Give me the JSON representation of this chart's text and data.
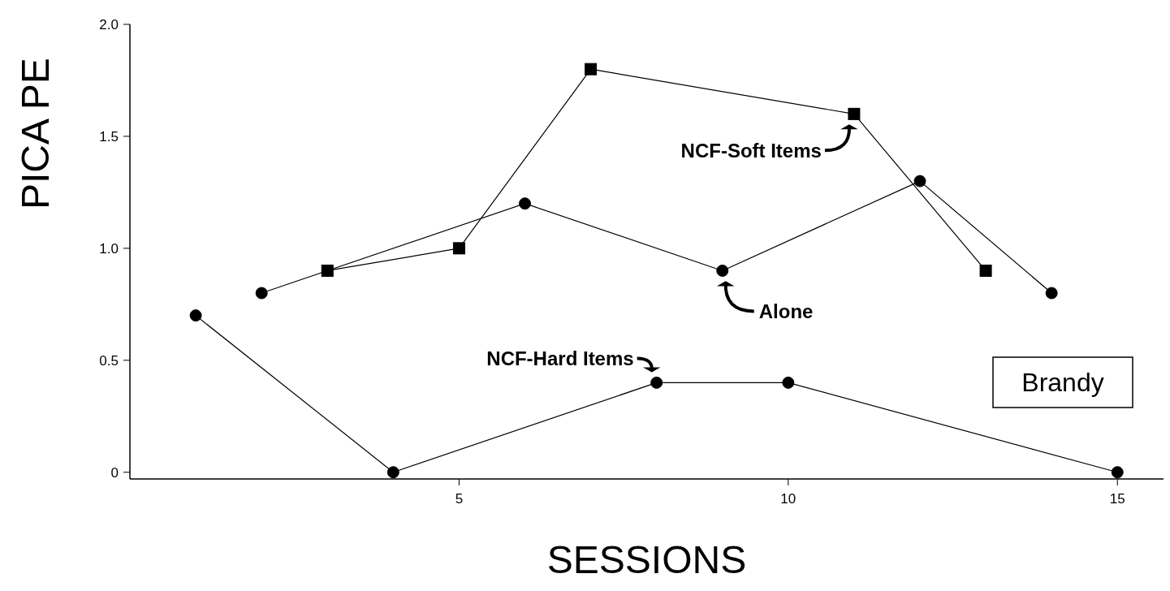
{
  "chart_data": {
    "type": "line",
    "xlabel": "SESSIONS",
    "ylabel": "PICA PE",
    "x": [
      1,
      2,
      3,
      4,
      5,
      6,
      7,
      8,
      9,
      10,
      11,
      12,
      13,
      14,
      15
    ],
    "xlim": [
      0,
      15.7
    ],
    "xticks": [
      5,
      10,
      15
    ],
    "ylim": [
      -0.03,
      2.0
    ],
    "yticks": [
      0,
      0.5,
      {
        "value": 1,
        "label": "1.0"
      },
      1.5,
      {
        "value": 2,
        "label": "2.0"
      }
    ],
    "grid": false,
    "line_style": "solid",
    "series": [
      {
        "color": "#000000",
        "marker": "circle",
        "values": [
          0.7,
          null,
          null,
          0,
          null,
          null,
          null,
          0.4,
          null,
          0.4,
          null,
          null,
          null,
          null,
          0
        ]
      },
      {
        "color": "#000000",
        "marker": "square",
        "values": [
          null,
          null,
          0.9,
          null,
          1.0,
          null,
          1.8,
          null,
          null,
          null,
          1.6,
          null,
          0.9,
          null,
          null
        ]
      },
      {
        "color": "#000000",
        "marker": "circle",
        "values": [
          null,
          0.8,
          null,
          null,
          null,
          1.2,
          null,
          null,
          0.9,
          null,
          null,
          1.3,
          null,
          0.8,
          null
        ]
      }
    ],
    "annotations": [
      {
        "text": "NCF-Soft Items",
        "x": 11,
        "y": 1.6
      },
      {
        "text": "Alone",
        "x": 9,
        "y": 0.9
      },
      {
        "text": "NCF-Hard Items",
        "x": 8,
        "y": 0.4
      },
      "Brandy"
    ]
  }
}
